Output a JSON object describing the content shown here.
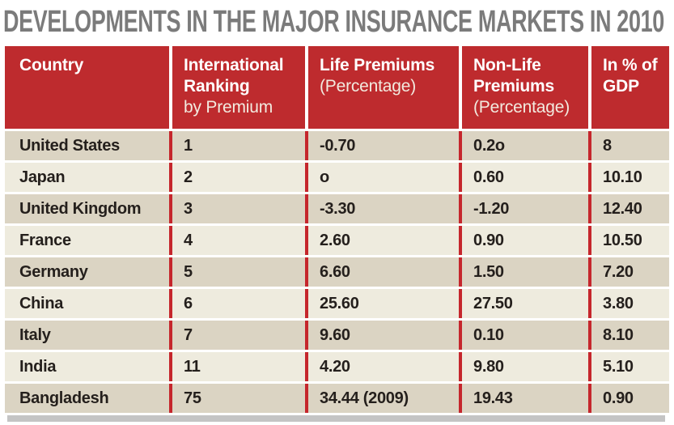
{
  "title": "DEVELOPMENTS IN THE MAJOR INSURANCE MARKETS IN 2010",
  "table": {
    "header": [
      {
        "bold": "Country",
        "normal": ""
      },
      {
        "bold": "International Ranking",
        "normal": "by Premium"
      },
      {
        "bold": "Life Premiums",
        "normal": "(Percentage)"
      },
      {
        "bold": "Non-Life Premiums",
        "normal": "(Percentage)"
      },
      {
        "bold": "In % of GDP",
        "normal": ""
      }
    ],
    "rows": [
      {
        "country": "United States",
        "rank": "1",
        "life": "-0.70",
        "nonlife": "0.2o",
        "gdp": "8"
      },
      {
        "country": "Japan",
        "rank": "2",
        "life": "o",
        "nonlife": "0.60",
        "gdp": "10.10"
      },
      {
        "country": "United Kingdom",
        "rank": "3",
        "life": "-3.30",
        "nonlife": "-1.20",
        "gdp": "12.40"
      },
      {
        "country": "France",
        "rank": "4",
        "life": "2.60",
        "nonlife": "0.90",
        "gdp": "10.50"
      },
      {
        "country": "Germany",
        "rank": "5",
        "life": "6.60",
        "nonlife": "1.50",
        "gdp": "7.20"
      },
      {
        "country": "China",
        "rank": "6",
        "life": "25.60",
        "nonlife": "27.50",
        "gdp": "3.80"
      },
      {
        "country": "Italy",
        "rank": "7",
        "life": "9.60",
        "nonlife": "0.10",
        "gdp": "8.10"
      },
      {
        "country": "India",
        "rank": "11",
        "life": "4.20",
        "nonlife": "9.80",
        "gdp": "5.10"
      },
      {
        "country": "Bangladesh",
        "rank": "75",
        "life": "34.44 (2009)",
        "nonlife": "19.43",
        "gdp": "0.90"
      }
    ]
  },
  "chart_data": {
    "type": "table",
    "title": "DEVELOPMENTS IN THE MAJOR INSURANCE MARKETS IN 2010",
    "columns": [
      "Country",
      "International Ranking by Premium",
      "Life Premiums (Percentage)",
      "Non-Life Premiums (Percentage)",
      "In % of GDP"
    ],
    "rows": [
      [
        "United States",
        "1",
        "-0.70",
        "0.2o",
        "8"
      ],
      [
        "Japan",
        "2",
        "o",
        "0.60",
        "10.10"
      ],
      [
        "United Kingdom",
        "3",
        "-3.30",
        "-1.20",
        "12.40"
      ],
      [
        "France",
        "4",
        "2.60",
        "0.90",
        "10.50"
      ],
      [
        "Germany",
        "5",
        "6.60",
        "1.50",
        "7.20"
      ],
      [
        "China",
        "6",
        "25.60",
        "27.50",
        "3.80"
      ],
      [
        "Italy",
        "7",
        "9.60",
        "0.10",
        "8.10"
      ],
      [
        "India",
        "11",
        "4.20",
        "9.80",
        "5.10"
      ],
      [
        "Bangladesh",
        "75",
        "34.44 (2009)",
        "19.43",
        "0.90"
      ]
    ]
  },
  "colors": {
    "header-red": "#BE2B2E",
    "line-red": "#C5262C",
    "row-dark": "#DBD4C3",
    "row-light": "#EEEBDE",
    "title-gray": "#7B7B7B",
    "text-dark": "#241F1C",
    "shadow-gray": "#C4C4C4"
  }
}
